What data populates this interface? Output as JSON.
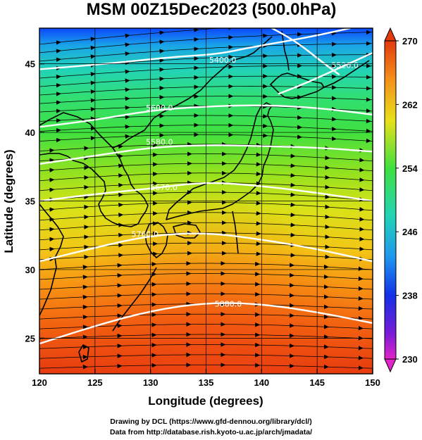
{
  "title": "MSM 00Z15Dec2023 (500.0hPa)",
  "xlabel": "Longitude (degrees)",
  "ylabel": "Latitude  (degrees)",
  "credit_line1": "Drawing by DCL (https://www.gfd-dennou.org/library/dcl/)",
  "credit_line2": "Data from http://database.rish.kyoto-u.ac.jp/arch/jmadata/",
  "chart_data": {
    "type": "map",
    "projection": "lon-lat",
    "xlim": [
      120,
      150
    ],
    "ylim": [
      22.4,
      47.6
    ],
    "x_ticks": [
      {
        "value": 120,
        "label": "120"
      },
      {
        "value": 125,
        "label": "125"
      },
      {
        "value": 130,
        "label": "130"
      },
      {
        "value": 135,
        "label": "135"
      },
      {
        "value": 140,
        "label": "140"
      },
      {
        "value": 145,
        "label": "145"
      },
      {
        "value": 150,
        "label": "150"
      }
    ],
    "y_ticks": [
      {
        "value": 25,
        "label": "25"
      },
      {
        "value": 30,
        "label": "30"
      },
      {
        "value": 35,
        "label": "35"
      },
      {
        "value": 40,
        "label": "40"
      },
      {
        "value": 45,
        "label": "45"
      }
    ],
    "grid": true,
    "shading": {
      "variable": "temperature",
      "colorbar_range": [
        230,
        270
      ],
      "colorbar_labels": [
        "270",
        "262",
        "254",
        "246",
        "238",
        "230"
      ],
      "colorbar_label_values": [
        270,
        262,
        254,
        246,
        238,
        230
      ]
    },
    "contours": [
      {
        "value": 5400.0,
        "label": "5400.0",
        "label_lon": 136.5,
        "label_lat": 45.3,
        "path": [
          [
            120,
            44.6
          ],
          [
            126,
            45.0
          ],
          [
            132,
            45.5
          ],
          [
            136,
            45.7
          ],
          [
            139,
            46.2
          ],
          [
            144,
            46.9
          ],
          [
            148,
            47.6
          ]
        ]
      },
      {
        "value": 5520.0,
        "label": "5520.0",
        "label_lon": 147.5,
        "label_lat": 44.9,
        "path": [
          [
            141.5,
            42.8
          ],
          [
            144,
            43.6
          ],
          [
            147,
            44.7
          ],
          [
            150,
            45.8
          ]
        ]
      },
      {
        "value": 5600.0,
        "label": "5600.0",
        "label_lon": 130.8,
        "label_lat": 41.8,
        "path": [
          [
            120,
            40.4
          ],
          [
            125,
            40.9
          ],
          [
            130,
            41.6
          ],
          [
            135,
            41.9
          ],
          [
            140,
            42.0
          ],
          [
            145,
            41.8
          ],
          [
            150,
            41.3
          ]
        ]
      },
      {
        "value": 5580.0,
        "label": "5580.0",
        "label_lon": 130.8,
        "label_lat": 39.3,
        "path": [
          [
            120,
            37.7
          ],
          [
            125,
            38.3
          ],
          [
            130,
            38.9
          ],
          [
            135,
            39.1
          ],
          [
            140,
            39.0
          ],
          [
            145,
            38.9
          ],
          [
            150,
            38.6
          ]
        ]
      },
      {
        "value": 5670.0,
        "label": "5670.0",
        "label_lon": 131.2,
        "label_lat": 36.0,
        "path": [
          [
            120,
            35.0
          ],
          [
            125,
            35.5
          ],
          [
            130,
            35.9
          ],
          [
            135,
            36.4
          ],
          [
            140,
            36.1
          ],
          [
            145,
            35.6
          ],
          [
            150,
            35.0
          ]
        ]
      },
      {
        "value": 5760.0,
        "label": "5760.0",
        "label_lon": 129.5,
        "label_lat": 32.6,
        "path": [
          [
            120,
            30.6
          ],
          [
            125,
            31.6
          ],
          [
            130,
            32.5
          ],
          [
            135,
            32.7
          ],
          [
            140,
            32.2
          ],
          [
            145,
            31.5
          ],
          [
            150,
            30.6
          ]
        ]
      },
      {
        "value": 5880.0,
        "label": "5880.0",
        "label_lon": 137.0,
        "label_lat": 27.5,
        "path": [
          [
            120,
            24.6
          ],
          [
            125,
            25.9
          ],
          [
            130,
            27.0
          ],
          [
            135,
            27.6
          ],
          [
            140,
            27.5
          ],
          [
            145,
            26.9
          ],
          [
            150,
            26.1
          ]
        ]
      },
      {
        "value": 5400.0,
        "label": "",
        "label_lon": null,
        "label_lat": null,
        "path": [
          [
            140,
            48.0
          ],
          [
            143,
            46.7
          ],
          [
            145.5,
            45.1
          ],
          [
            147,
            44.2
          ]
        ]
      }
    ]
  }
}
